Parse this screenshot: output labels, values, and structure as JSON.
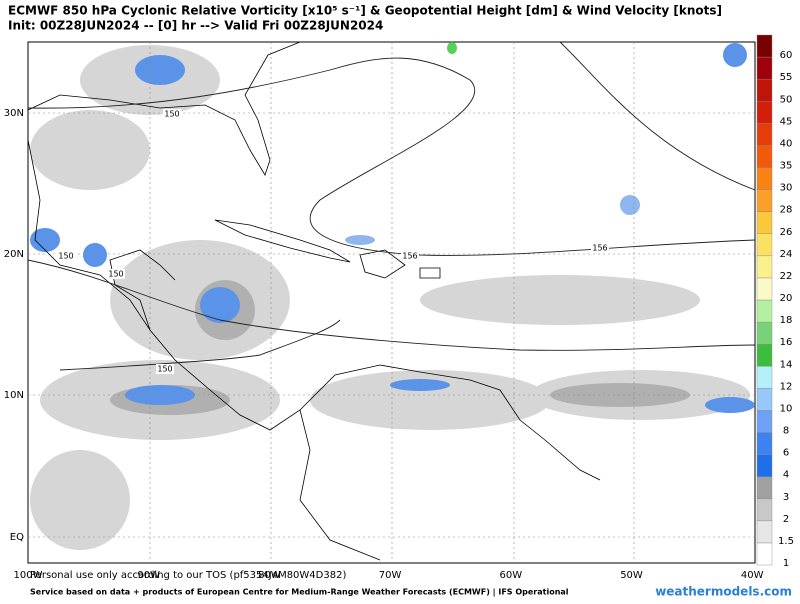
{
  "header": {
    "title": "ECMWF 850 hPa Cyclonic Relative Vorticity [x10⁵ s⁻¹] & Geopotential Height [dm] & Wind Velocity [knots]",
    "subtitle": "Init: 00Z28JUN2024 -- [0] hr --> Valid Fri 00Z28JUN2024"
  },
  "map": {
    "lat_labels": [
      "30N",
      "20N",
      "10N",
      "EQ"
    ],
    "lon_labels": [
      "100W",
      "90W",
      "80W",
      "70W",
      "60W",
      "50W",
      "40W"
    ],
    "contour_labels": [
      "150",
      "150",
      "150",
      "150",
      "156",
      "156"
    ]
  },
  "colorbar": {
    "labels": [
      "1",
      "1.5",
      "2",
      "3",
      "4",
      "6",
      "8",
      "10",
      "12",
      "14",
      "16",
      "18",
      "20",
      "22",
      "24",
      "26",
      "28",
      "30",
      "35",
      "40",
      "45",
      "50",
      "55",
      "60"
    ],
    "colors": [
      "#ffffff",
      "#e6e6e6",
      "#c8c8c8",
      "#a0a0a0",
      "#1e6eeb",
      "#3c82f0",
      "#6ea0f5",
      "#96c8fa",
      "#b4f0fa",
      "#3cbe3c",
      "#78d278",
      "#b4f0a0",
      "#fafac8",
      "#faf08c",
      "#fae164",
      "#fac83c",
      "#faa028",
      "#fa8214",
      "#f05a0a",
      "#e63c0a",
      "#d21e0a",
      "#be140a",
      "#a0000a",
      "#780000"
    ]
  },
  "footer": {
    "disclaimer": "Personal use only according to our TOS (pf5354J4M80W4D382)",
    "credit": "Service based on data + products of European Centre for Medium-Range Weather Forecasts (ECMWF) | IFS Operational",
    "brand": "weathermodels.com"
  }
}
